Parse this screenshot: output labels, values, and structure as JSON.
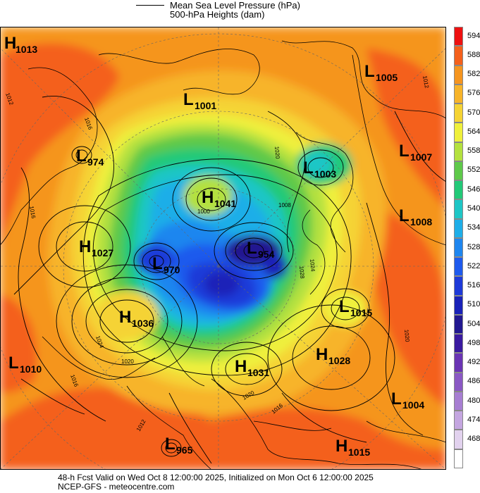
{
  "header": {
    "line1": "Mean Sea Level Pressure (hPa)",
    "line2": "500-hPa Heights (dam)"
  },
  "footer": {
    "line1": "48-h Fcst Valid on Wed Oct  8 12:00:00 2025, Initialized on Mon Oct  6 12:00:00 2025",
    "line2": "NCEP-GFS  - meteocentre.com"
  },
  "colorbar": {
    "levels": [
      {
        "v": "594",
        "c": "#ee1111"
      },
      {
        "v": "588",
        "c": "#f4601c"
      },
      {
        "v": "582",
        "c": "#f5951f"
      },
      {
        "v": "576",
        "c": "#f7b42a"
      },
      {
        "v": "570",
        "c": "#f5d334"
      },
      {
        "v": "564",
        "c": "#eff03c"
      },
      {
        "v": "558",
        "c": "#b4e13f"
      },
      {
        "v": "552",
        "c": "#5ec94a"
      },
      {
        "v": "546",
        "c": "#22c978"
      },
      {
        "v": "540",
        "c": "#1ec6c6"
      },
      {
        "v": "534",
        "c": "#1eaee8"
      },
      {
        "v": "528",
        "c": "#1e86ef"
      },
      {
        "v": "522",
        "c": "#1e5aed"
      },
      {
        "v": "516",
        "c": "#1e3ad8"
      },
      {
        "v": "510",
        "c": "#1a22b8"
      },
      {
        "v": "504",
        "c": "#221890"
      },
      {
        "v": "498",
        "c": "#3a1aa0"
      },
      {
        "v": "492",
        "c": "#6a34b4"
      },
      {
        "v": "486",
        "c": "#8a58c4"
      },
      {
        "v": "480",
        "c": "#a77ed2"
      },
      {
        "v": "474",
        "c": "#c4a6e0"
      },
      {
        "v": "468",
        "c": "#e2d2ee"
      },
      {
        "v": "",
        "c": "#ffffff"
      }
    ]
  },
  "systems": [
    {
      "t": "H",
      "v": "1013"
    },
    {
      "t": "L",
      "v": "1005"
    },
    {
      "t": "L",
      "v": "1001"
    },
    {
      "t": "L",
      "v": "974"
    },
    {
      "t": "L",
      "v": "1007"
    },
    {
      "t": "L",
      "v": "1003"
    },
    {
      "t": "H",
      "v": "1041"
    },
    {
      "t": "L",
      "v": "1008"
    },
    {
      "t": "H",
      "v": "1027"
    },
    {
      "t": "L",
      "v": "954"
    },
    {
      "t": "L",
      "v": "970"
    },
    {
      "t": "L",
      "v": "1015"
    },
    {
      "t": "H",
      "v": "1036"
    },
    {
      "t": "H",
      "v": "1028"
    },
    {
      "t": "L",
      "v": "1010"
    },
    {
      "t": "H",
      "v": "1031"
    },
    {
      "t": "L",
      "v": "1004"
    },
    {
      "t": "L",
      "v": "965"
    },
    {
      "t": "H",
      "v": "1015"
    }
  ],
  "isobar_labels": [
    "1012",
    "1016",
    "1020",
    "1024",
    "1028",
    "1008",
    "1000",
    "1016",
    "1020",
    "1024",
    "1012",
    "1016",
    "1020",
    "1016",
    "1012",
    "1020"
  ]
}
